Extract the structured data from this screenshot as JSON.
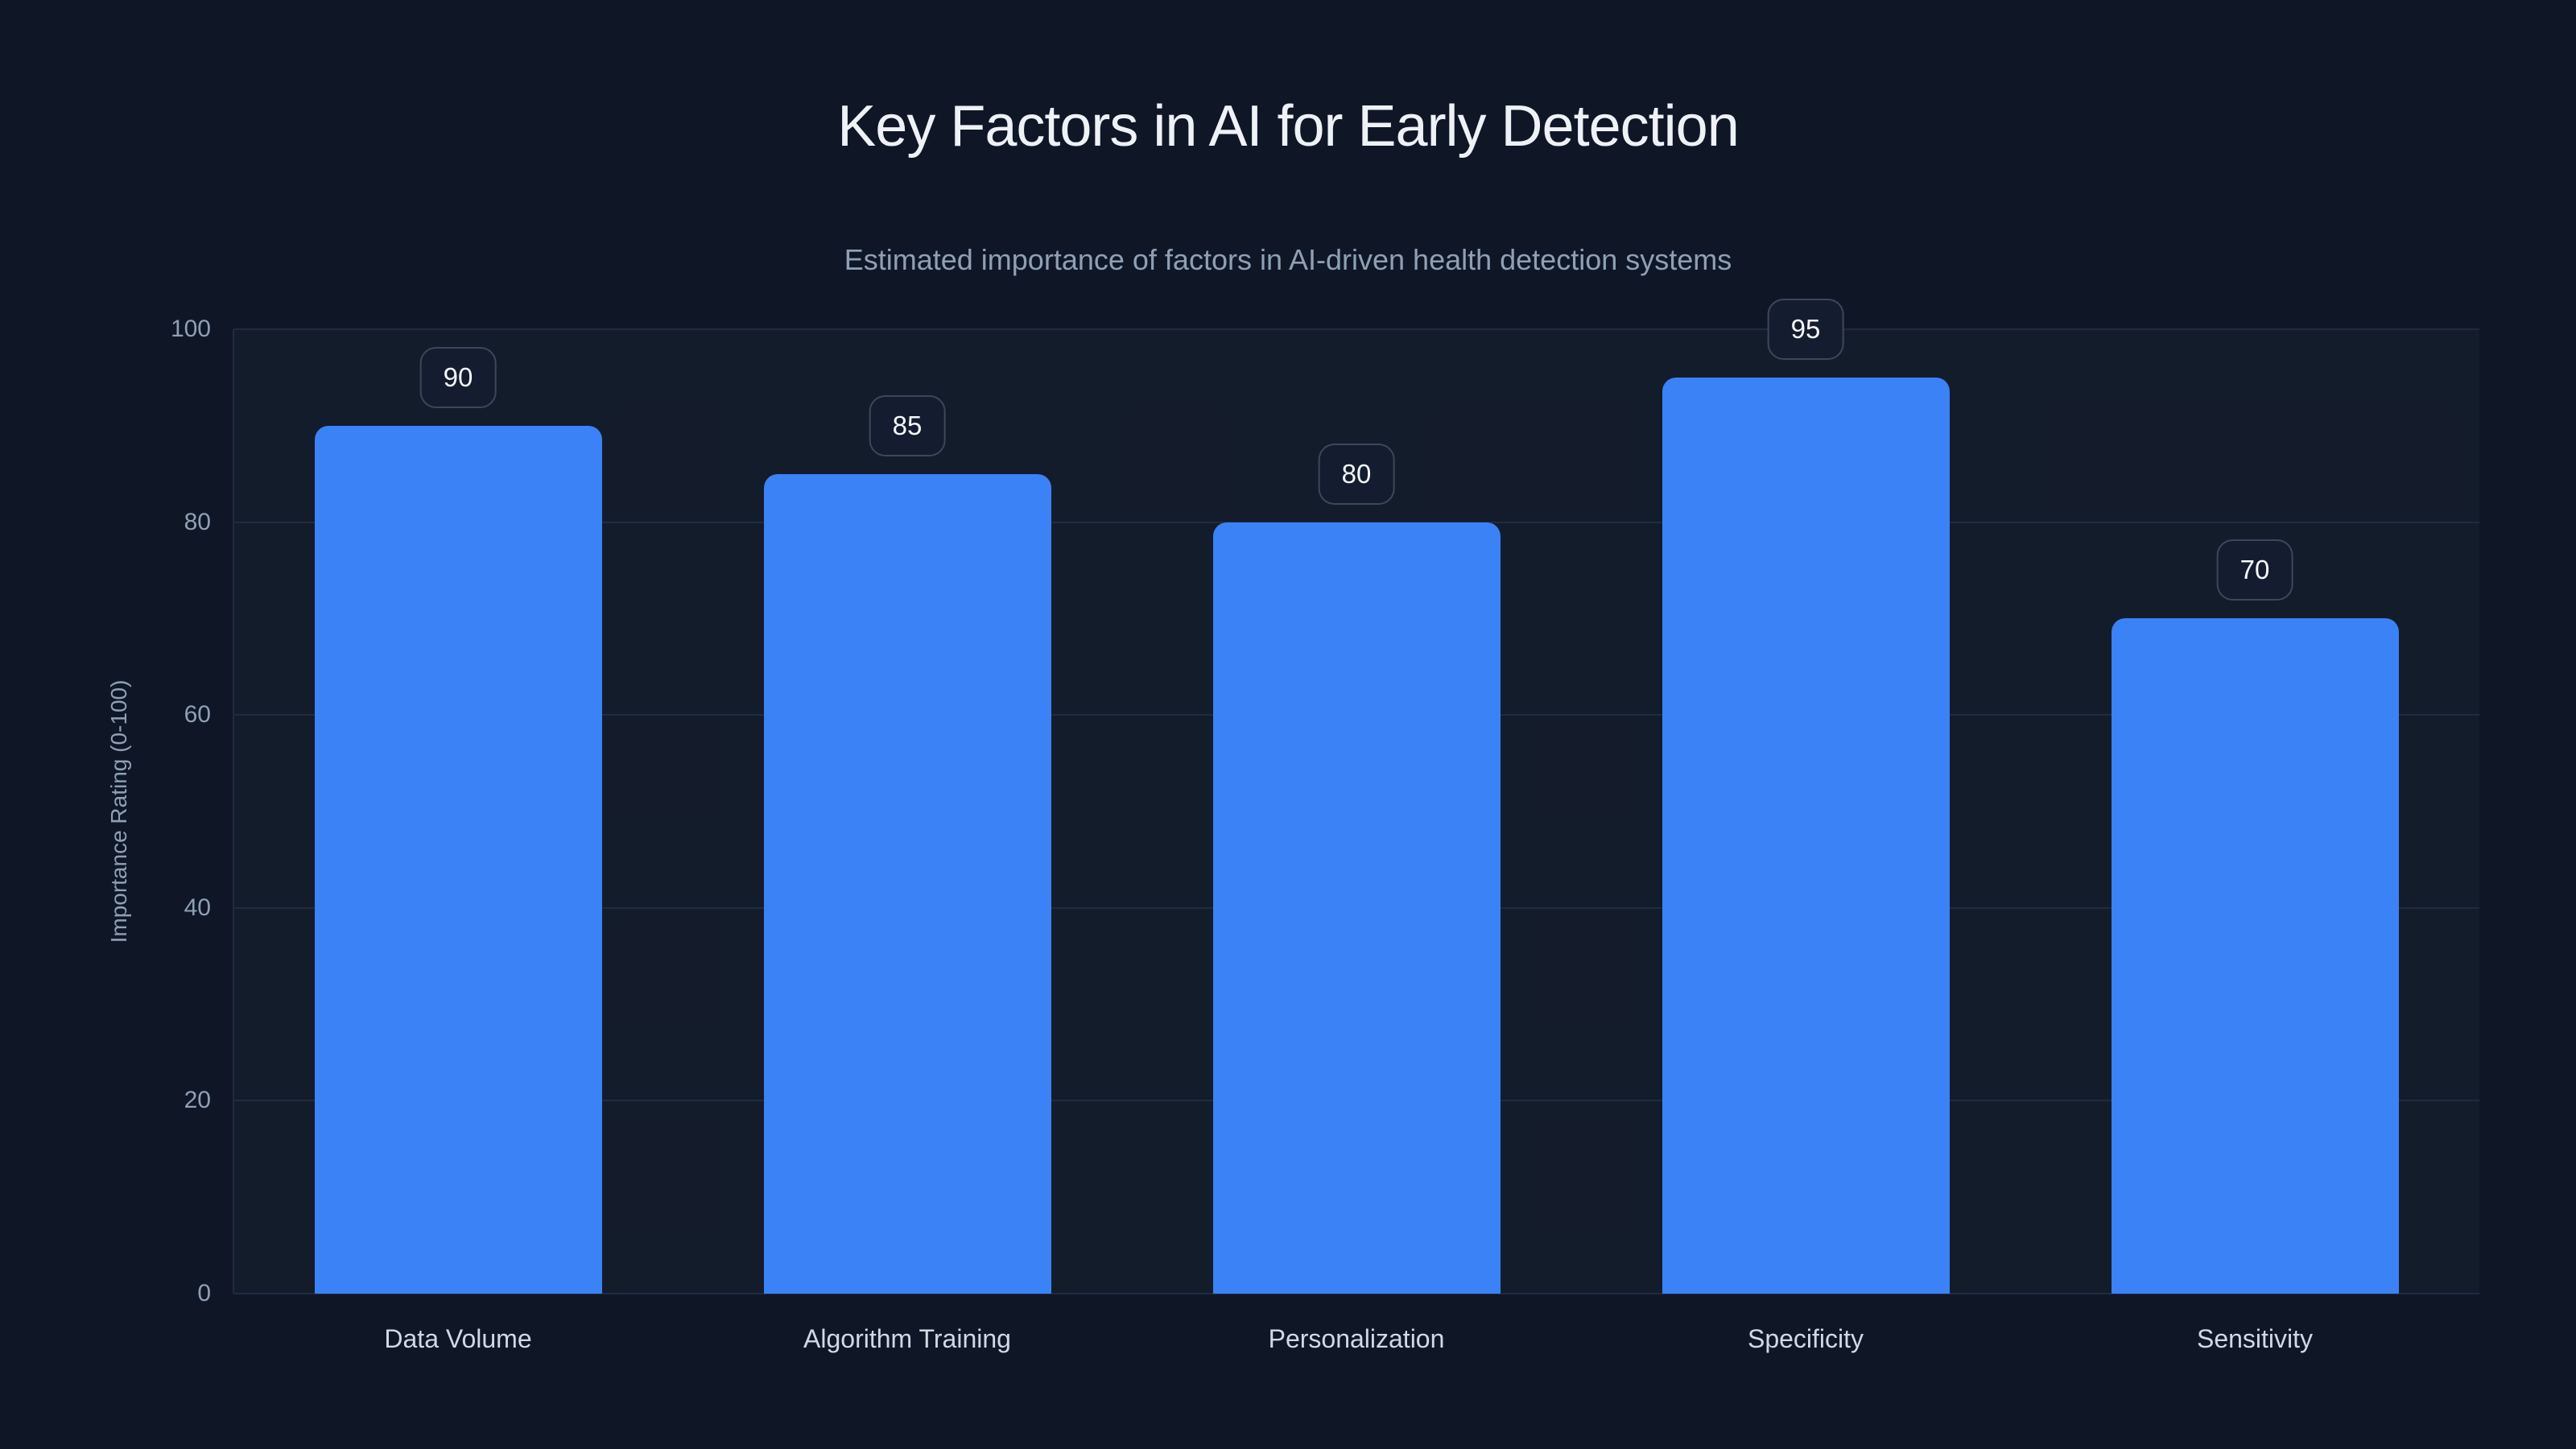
{
  "chart_data": {
    "type": "bar",
    "title": "Key Factors in AI for Early Detection",
    "subtitle": "Estimated importance of factors in AI-driven health detection systems",
    "ylabel": "Importance Rating (0-100)",
    "xlabel": "",
    "categories": [
      "Data Volume",
      "Algorithm Training",
      "Personalization",
      "Specificity",
      "Sensitivity"
    ],
    "values": [
      90,
      85,
      80,
      95,
      70
    ],
    "value_labels": [
      "90",
      "85",
      "80",
      "95",
      "70"
    ],
    "ylim": [
      0,
      100
    ],
    "yticks": [
      0,
      20,
      40,
      60,
      80,
      100
    ],
    "ytick_labels": [
      "0",
      "20",
      "40",
      "60",
      "80",
      "100"
    ],
    "grid": "horizontal",
    "legend": "none",
    "colors": {
      "bar": "#3b82f6",
      "background": "#0f1727",
      "grid": "#202b41",
      "title": "#eef2f7",
      "subtitle": "#8fa0b5",
      "tick": "#8fa0b5",
      "category": "#d0d9e4",
      "badge_border": "#3d4757",
      "badge_bg": "#141d30",
      "badge_text": "#f5f8fc"
    }
  }
}
